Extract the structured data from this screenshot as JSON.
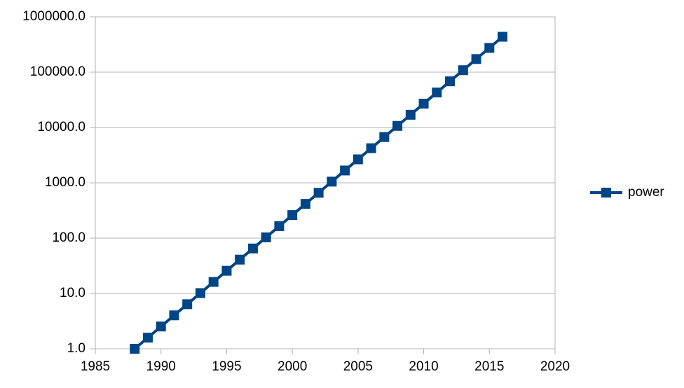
{
  "chart_data": {
    "type": "line",
    "x": [
      1988,
      1989,
      1990,
      1991,
      1992,
      1993,
      1994,
      1995,
      1996,
      1997,
      1998,
      1999,
      2000,
      2001,
      2002,
      2003,
      2004,
      2005,
      2006,
      2007,
      2008,
      2009,
      2010,
      2011,
      2012,
      2013,
      2014,
      2015,
      2016
    ],
    "series": [
      {
        "name": "power",
        "color": "#004586",
        "values": [
          1,
          1.59,
          2.528,
          4.02,
          6.391,
          10.16,
          16.16,
          25.7,
          40.86,
          64.96,
          103.3,
          164.2,
          261.1,
          415.2,
          660.2,
          1049.7,
          1669,
          2654,
          4220,
          6710,
          10669,
          16963,
          26972,
          42885,
          68187,
          108417,
          172383,
          274089,
          435801
        ]
      }
    ],
    "xlim": [
      1985,
      2020
    ],
    "xticks": [
      1985,
      1990,
      1995,
      2000,
      2005,
      2010,
      2015,
      2020
    ],
    "ylim": [
      1,
      1000000
    ],
    "log_y": true,
    "yticks": [
      {
        "value": 1,
        "label": "1.0"
      },
      {
        "value": 10,
        "label": "10.0"
      },
      {
        "value": 100,
        "label": "100.0"
      },
      {
        "value": 1000,
        "label": "1000.0"
      },
      {
        "value": 10000,
        "label": "10000.0"
      },
      {
        "value": 100000,
        "label": "100000.0"
      },
      {
        "value": 1000000,
        "label": "1000000.0"
      }
    ],
    "grid": true,
    "legend": "right"
  }
}
